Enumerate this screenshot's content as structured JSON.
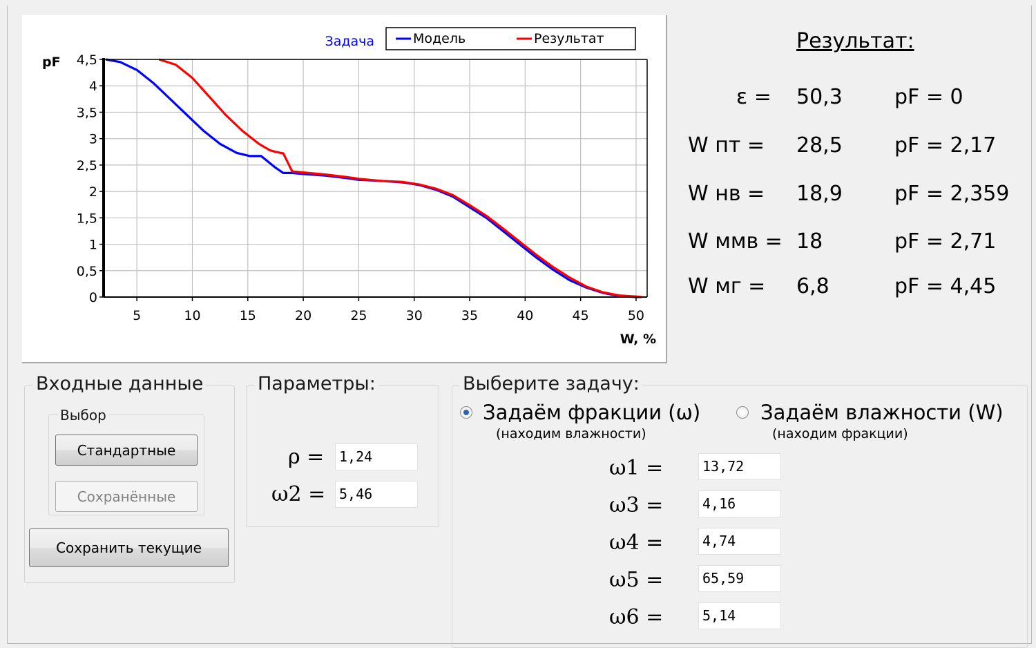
{
  "chart_data": {
    "type": "line",
    "title": "Задача",
    "xlabel": "W, %",
    "ylabel": "pF",
    "xlim": [
      2,
      51
    ],
    "ylim": [
      0,
      4.5
    ],
    "x_ticks": [
      5,
      10,
      15,
      20,
      25,
      30,
      35,
      40,
      45,
      50
    ],
    "y_ticks": [
      0,
      0.5,
      1,
      1.5,
      2,
      2.5,
      3,
      3.5,
      4,
      4.5
    ],
    "x_tick_labels": [
      "5",
      "10",
      "15",
      "20",
      "25",
      "30",
      "35",
      "40",
      "45",
      "50"
    ],
    "y_tick_labels": [
      "0",
      "0,5",
      "1",
      "1,5",
      "2",
      "2,5",
      "3",
      "3,5",
      "4",
      "4,5"
    ],
    "grid": true,
    "legend": "top-right",
    "series": [
      {
        "name": "Модель",
        "color": "#0000ff",
        "points": [
          [
            2.2,
            4.5
          ],
          [
            3.5,
            4.45
          ],
          [
            5,
            4.3
          ],
          [
            6.5,
            4.05
          ],
          [
            8,
            3.75
          ],
          [
            9.5,
            3.45
          ],
          [
            11,
            3.15
          ],
          [
            12.5,
            2.9
          ],
          [
            14,
            2.73
          ],
          [
            15.2,
            2.67
          ],
          [
            16.2,
            2.67
          ],
          [
            17.5,
            2.45
          ],
          [
            18.2,
            2.35
          ],
          [
            19,
            2.35
          ],
          [
            20,
            2.33
          ],
          [
            22,
            2.3
          ],
          [
            24,
            2.25
          ],
          [
            25,
            2.22
          ],
          [
            27,
            2.2
          ],
          [
            29,
            2.17
          ],
          [
            30.5,
            2.12
          ],
          [
            32,
            2.03
          ],
          [
            33.5,
            1.9
          ],
          [
            35,
            1.7
          ],
          [
            36.5,
            1.5
          ],
          [
            38,
            1.25
          ],
          [
            39.5,
            1.0
          ],
          [
            41,
            0.75
          ],
          [
            42.5,
            0.52
          ],
          [
            44,
            0.32
          ],
          [
            45.5,
            0.18
          ],
          [
            47,
            0.08
          ],
          [
            48.5,
            0.02
          ],
          [
            50,
            0.0
          ],
          [
            50.5,
            0.0
          ]
        ]
      },
      {
        "name": "Результат",
        "color": "#ff0000",
        "points": [
          [
            7,
            4.5
          ],
          [
            8.5,
            4.4
          ],
          [
            10,
            4.15
          ],
          [
            11.5,
            3.8
          ],
          [
            13,
            3.45
          ],
          [
            14.5,
            3.15
          ],
          [
            16,
            2.9
          ],
          [
            17,
            2.78
          ],
          [
            17.5,
            2.75
          ],
          [
            18.2,
            2.72
          ],
          [
            18.6,
            2.55
          ],
          [
            19,
            2.38
          ],
          [
            20,
            2.36
          ],
          [
            22,
            2.32
          ],
          [
            24,
            2.27
          ],
          [
            25,
            2.24
          ],
          [
            27,
            2.2
          ],
          [
            29,
            2.18
          ],
          [
            30.5,
            2.13
          ],
          [
            32,
            2.05
          ],
          [
            33.5,
            1.93
          ],
          [
            35,
            1.74
          ],
          [
            36.5,
            1.54
          ],
          [
            38,
            1.3
          ],
          [
            39.5,
            1.05
          ],
          [
            41,
            0.8
          ],
          [
            42.5,
            0.57
          ],
          [
            44,
            0.37
          ],
          [
            45.5,
            0.2
          ],
          [
            47,
            0.09
          ],
          [
            48.5,
            0.03
          ],
          [
            50,
            0.01
          ],
          [
            50.5,
            0.0
          ]
        ]
      }
    ]
  },
  "results": {
    "title": "Результат:",
    "rows": [
      {
        "label": "ε =",
        "value": "50,3",
        "pf": "pF = 0"
      },
      {
        "label": "W пт =",
        "value": "28,5",
        "pf": "pF = 2,17"
      },
      {
        "label": "W нв =",
        "value": "18,9",
        "pf": "pF = 2,359"
      },
      {
        "label": "W ммв =",
        "value": "18",
        "pf": "pF = 2,71"
      },
      {
        "label": "W мг =",
        "value": "6,8",
        "pf": "pF = 4,45"
      }
    ]
  },
  "input_data": {
    "legend": "Входные данные",
    "choice_legend": "Выбор",
    "standard_label": "Стандартные",
    "saved_label": "Сохранённые",
    "save_current_label": "Сохранить текущие"
  },
  "params": {
    "legend": "Параметры:",
    "rho_label": "ρ =",
    "rho_value": "1,24",
    "w2_label": "ω2 =",
    "w2_value": "5,46"
  },
  "task": {
    "legend": "Выберите задачу:",
    "option1_label": "Задаём фракции (ω)",
    "option1_hint": "(находим влажности)",
    "option1_checked": true,
    "option2_label": "Задаём влажности (W)",
    "option2_hint": "(находим фракции)",
    "option2_checked": false,
    "fields": [
      {
        "label": "ω1 =",
        "value": "13,72"
      },
      {
        "label": "ω3 =",
        "value": "4,16"
      },
      {
        "label": "ω4 =",
        "value": "4,74"
      },
      {
        "label": "ω5 =",
        "value": "65,59"
      },
      {
        "label": "ω6 =",
        "value": "5,14"
      }
    ]
  }
}
